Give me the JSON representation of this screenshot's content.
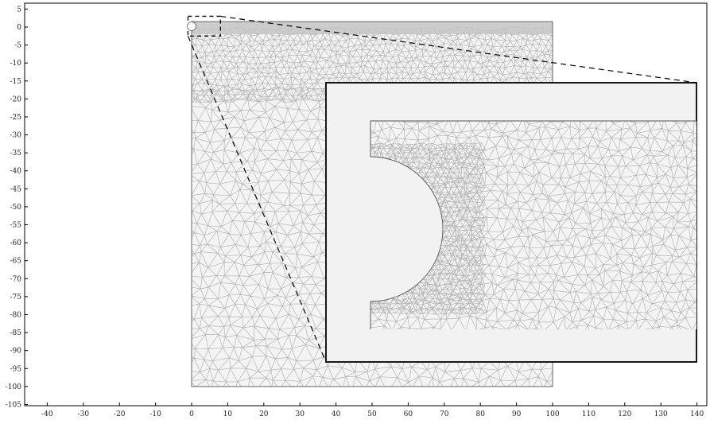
{
  "colors": {
    "background": "#ffffff",
    "frame": "#000000",
    "mesh_line": "#b4b4b4",
    "mesh_fill": "#f4f4f4",
    "dense_mesh": "#c4c4c4",
    "inset_bg": "#f2f2f2",
    "zoom_lines": "#000000"
  },
  "axes": {
    "x_range": [
      -45,
      140
    ],
    "y_range": [
      -105,
      5
    ],
    "x_ticks": [
      "-40",
      "-30",
      "-20",
      "-10",
      "0",
      "10",
      "20",
      "30",
      "40",
      "50",
      "60",
      "70",
      "80",
      "90",
      "100",
      "110",
      "120",
      "130",
      "140"
    ],
    "y_ticks": [
      "5",
      "0",
      "-5",
      "-10",
      "-15",
      "-20",
      "-25",
      "-30",
      "-35",
      "-40",
      "-45",
      "-50",
      "-55",
      "-60",
      "-65",
      "-70",
      "-75",
      "-80",
      "-85",
      "-90",
      "-95",
      "-100",
      "-105"
    ]
  },
  "geometry": {
    "domain_x": [
      0,
      100
    ],
    "domain_y": [
      -100,
      1.5
    ],
    "hole_radius": 1.2,
    "zoom_box_x": [
      -1,
      8
    ],
    "zoom_box_y": [
      -2.5,
      3
    ]
  },
  "icons": {
    "mesh": "triangular-mesh",
    "zoom": "dashed-zoom-callout"
  }
}
